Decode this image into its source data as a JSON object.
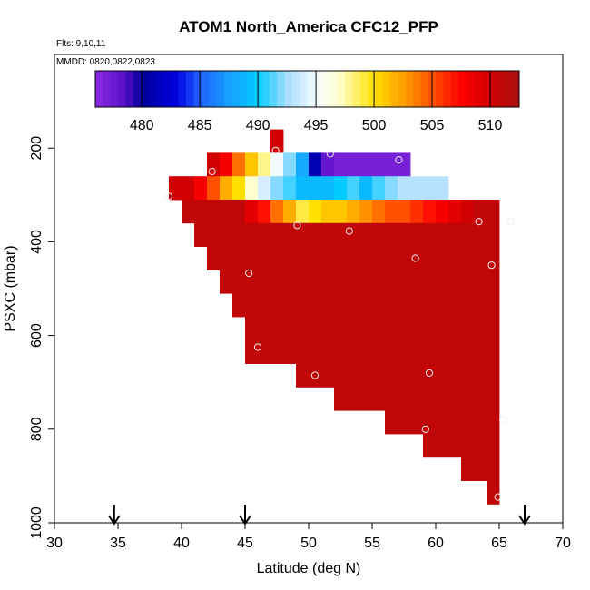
{
  "chart_data": {
    "type": "heatmap",
    "title": "ATOM1 North_America CFC12_PFP",
    "annotations": [
      "Flts: 9,10,11",
      "MMDD: 0820,0822,0823"
    ],
    "xlabel": "Latitude (deg N)",
    "ylabel": "PSXC (mbar)",
    "xlim": [
      30,
      70
    ],
    "ylim": [
      1000,
      0
    ],
    "x_ticks": [
      30,
      35,
      40,
      45,
      50,
      55,
      60,
      65,
      70
    ],
    "y_ticks": [
      200,
      400,
      600,
      800,
      1000
    ],
    "colorbar": {
      "range": [
        476,
        512.5
      ],
      "ticks": [
        480,
        485,
        490,
        495,
        500,
        505,
        510
      ],
      "placement": "top-inside",
      "stops": [
        {
          "v": 476,
          "c": "#8a2be2"
        },
        {
          "v": 478.5,
          "c": "#5a10c8"
        },
        {
          "v": 480,
          "c": "#00009c"
        },
        {
          "v": 483,
          "c": "#0000e0"
        },
        {
          "v": 485,
          "c": "#2060ff"
        },
        {
          "v": 487.5,
          "c": "#1aa0ff"
        },
        {
          "v": 490,
          "c": "#00ccff"
        },
        {
          "v": 492.5,
          "c": "#a8dcff"
        },
        {
          "v": 495,
          "c": "#f4fbff"
        },
        {
          "v": 497,
          "c": "#ffffd0"
        },
        {
          "v": 500,
          "c": "#ffe000"
        },
        {
          "v": 502.5,
          "c": "#ffa000"
        },
        {
          "v": 505,
          "c": "#ff5000"
        },
        {
          "v": 507.5,
          "c": "#ff0000"
        },
        {
          "v": 510,
          "c": "#d00000"
        },
        {
          "v": 512.5,
          "c": "#a81010"
        }
      ]
    },
    "cells": {
      "lat_bin": 1,
      "pressure_bin": 25,
      "rows": [
        {
          "p": [
            160,
            185
          ],
          "lat": [
            47,
            48
          ],
          "values": [
            510
          ]
        },
        {
          "p": [
            185,
            210
          ],
          "lat": [
            47,
            48
          ],
          "values": [
            510
          ]
        },
        {
          "p": [
            210,
            235
          ],
          "lat": [
            42,
            58
          ],
          "values": [
            510,
            508,
            504,
            501,
            498,
            495,
            492,
            488,
            481,
            478,
            477,
            477,
            477,
            477,
            477,
            477
          ]
        },
        {
          "p": [
            235,
            260
          ],
          "lat": [
            42,
            58
          ],
          "values": [
            510,
            508,
            504,
            501,
            498,
            495,
            492,
            488,
            481,
            478,
            477,
            477,
            477,
            477,
            477,
            477
          ]
        },
        {
          "p": [
            260,
            285
          ],
          "lat": [
            39,
            61
          ],
          "values": [
            510,
            510,
            508,
            505,
            502,
            500,
            497,
            494,
            492,
            491,
            489,
            489,
            489,
            490,
            491,
            489,
            491,
            492,
            493,
            493,
            493,
            493
          ]
        },
        {
          "p": [
            285,
            310
          ],
          "lat": [
            39,
            61
          ],
          "values": [
            510,
            510,
            508,
            505,
            502,
            500,
            497,
            494,
            492,
            491,
            489,
            489,
            489,
            490,
            491,
            489,
            491,
            492,
            493,
            493,
            493,
            493
          ]
        },
        {
          "p": [
            310,
            335
          ],
          "lat": [
            40,
            65
          ],
          "values": [
            511,
            511,
            511,
            511,
            511,
            509,
            507,
            504,
            502,
            499,
            500,
            501,
            501,
            502,
            503,
            504,
            505,
            505,
            506,
            507,
            508,
            509,
            510,
            511,
            511
          ]
        },
        {
          "p": [
            335,
            360
          ],
          "lat": [
            40,
            65
          ],
          "values": [
            511,
            511,
            511,
            511,
            511,
            509,
            507,
            504,
            502,
            499,
            500,
            501,
            501,
            502,
            503,
            504,
            505,
            505,
            506,
            507,
            508,
            509,
            510,
            511,
            511
          ]
        },
        {
          "p": [
            360,
            410
          ],
          "lat": [
            41,
            65
          ],
          "values": [
            511
          ]
        },
        {
          "p": [
            410,
            460
          ],
          "lat": [
            42,
            65
          ],
          "values": [
            511
          ]
        },
        {
          "p": [
            460,
            510
          ],
          "lat": [
            43,
            65
          ],
          "values": [
            511
          ]
        },
        {
          "p": [
            510,
            560
          ],
          "lat": [
            44,
            65
          ],
          "values": [
            511
          ]
        },
        {
          "p": [
            560,
            660
          ],
          "lat": [
            45,
            65
          ],
          "values": [
            511
          ]
        },
        {
          "p": [
            660,
            710
          ],
          "lat": [
            49,
            65
          ],
          "values": [
            511
          ]
        },
        {
          "p": [
            710,
            760
          ],
          "lat": [
            52,
            65
          ],
          "values": [
            511
          ]
        },
        {
          "p": [
            760,
            810
          ],
          "lat": [
            56,
            65
          ],
          "values": [
            511
          ]
        },
        {
          "p": [
            810,
            860
          ],
          "lat": [
            59,
            65
          ],
          "values": [
            511
          ]
        },
        {
          "p": [
            860,
            910
          ],
          "lat": [
            62,
            65
          ],
          "values": [
            511
          ]
        },
        {
          "p": [
            910,
            960
          ],
          "lat": [
            64,
            65
          ],
          "values": [
            511
          ]
        }
      ]
    },
    "samples": [
      {
        "lat": 47.4,
        "p": 205
      },
      {
        "lat": 51.7,
        "p": 212
      },
      {
        "lat": 57.1,
        "p": 225
      },
      {
        "lat": 42.4,
        "p": 250
      },
      {
        "lat": 39.0,
        "p": 303
      },
      {
        "lat": 49.1,
        "p": 365
      },
      {
        "lat": 53.2,
        "p": 377
      },
      {
        "lat": 58.4,
        "p": 435
      },
      {
        "lat": 63.4,
        "p": 357
      },
      {
        "lat": 65.9,
        "p": 357
      },
      {
        "lat": 64.4,
        "p": 450
      },
      {
        "lat": 45.3,
        "p": 467
      },
      {
        "lat": 46.0,
        "p": 625
      },
      {
        "lat": 50.5,
        "p": 685
      },
      {
        "lat": 59.5,
        "p": 680
      },
      {
        "lat": 65.3,
        "p": 780
      },
      {
        "lat": 59.2,
        "p": 800
      },
      {
        "lat": 64.9,
        "p": 945
      }
    ],
    "flight_markers_lat": [
      34.7,
      45.0,
      67.0
    ]
  }
}
